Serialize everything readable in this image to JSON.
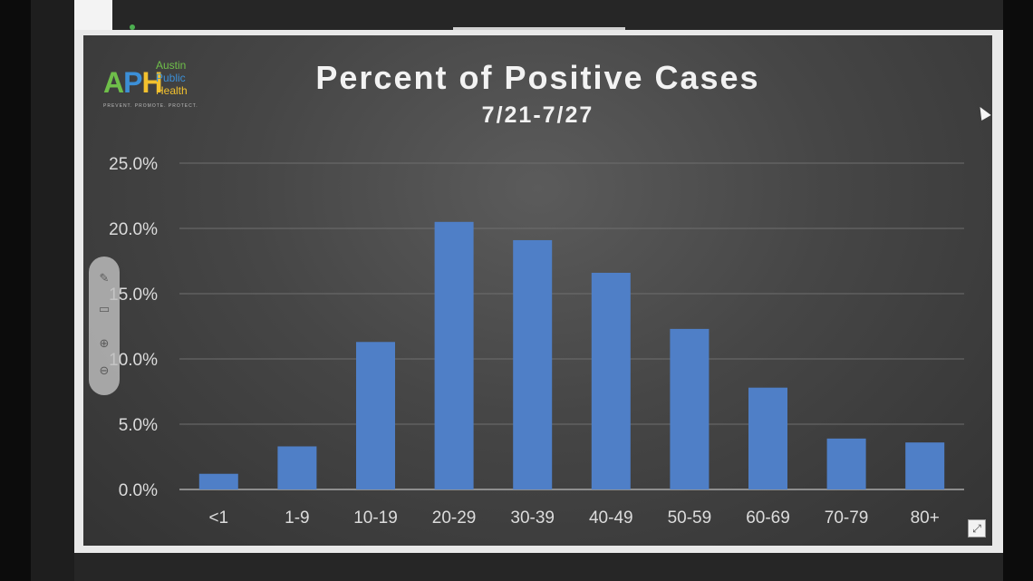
{
  "logo": {
    "letters": [
      "A",
      "P",
      "H"
    ],
    "words": [
      "Austin",
      "Public",
      "Health"
    ],
    "tagline": "PREVENT. PROMOTE. PROTECT.",
    "colors": {
      "green": "#6fbf4a",
      "blue": "#3c8fd6",
      "yellow": "#f2c12e"
    }
  },
  "toolbar": {
    "icons": [
      "pen-icon",
      "eraser-icon",
      "zoom-in-icon",
      "zoom-out-icon"
    ]
  },
  "chart_data": {
    "type": "bar",
    "title": "Percent of Positive Cases",
    "subtitle": "7/21-7/27",
    "categories": [
      "<1",
      "1-9",
      "10-19",
      "20-29",
      "30-39",
      "40-49",
      "50-59",
      "60-69",
      "70-79",
      "80+"
    ],
    "values": [
      1.2,
      3.3,
      11.3,
      20.5,
      19.1,
      16.6,
      12.3,
      7.8,
      3.9,
      3.6
    ],
    "ylim": [
      0,
      25
    ],
    "yticks": [
      "0.0%",
      "5.0%",
      "10.0%",
      "15.0%",
      "20.0%",
      "25.0%"
    ],
    "grid": true,
    "bar_color": "#4f7fc7"
  }
}
